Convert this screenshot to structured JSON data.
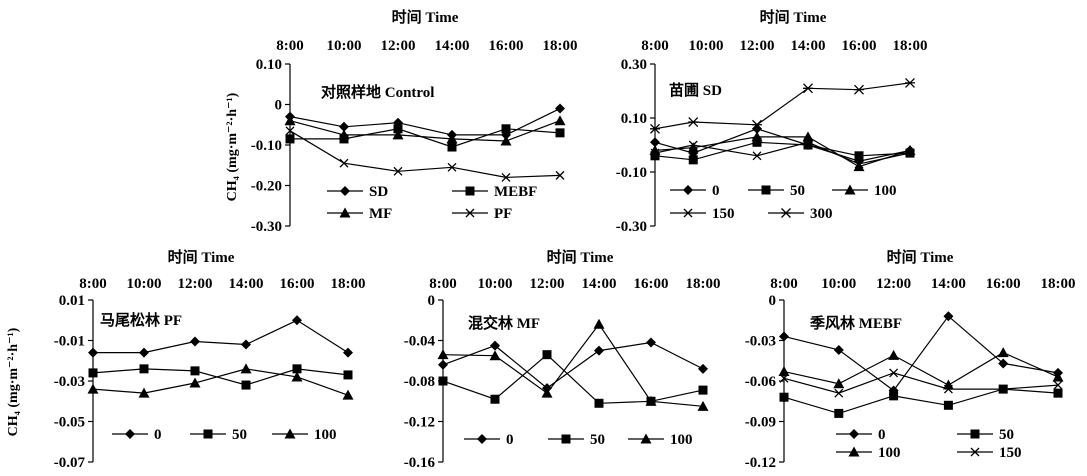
{
  "x_axis_title": "时间  Time",
  "y_axis_title_top": "CH₄ (mg·m⁻²·h⁻¹)",
  "y_axis_title_bottom": "CH₄ (mg·m⁻²·h⁻¹)",
  "chart_data": [
    {
      "type": "line",
      "title": "对照样地 Control",
      "xlabel": "时间  Time",
      "ylabel": "CH₄ (mg·m⁻²·h⁻¹)",
      "categories": [
        "8:00",
        "10:00",
        "12:00",
        "14:00",
        "16:00",
        "18:00"
      ],
      "yticks": [
        "0.10",
        "0",
        "-0.10",
        "-0.20",
        "-0.30"
      ],
      "ylim": [
        -0.3,
        0.1
      ],
      "legend_position": "bottom-inside",
      "series": [
        {
          "name": "SD",
          "marker": "diamond",
          "x": [
            8,
            10,
            12,
            14,
            16,
            18
          ],
          "values": [
            -0.03,
            -0.055,
            -0.045,
            -0.075,
            -0.075,
            -0.01
          ]
        },
        {
          "name": "MEBF",
          "marker": "square",
          "x": [
            8,
            10,
            12,
            14,
            16,
            18
          ],
          "values": [
            -0.085,
            -0.085,
            -0.06,
            -0.105,
            -0.06,
            -0.07
          ]
        },
        {
          "name": "MF",
          "marker": "triangle",
          "x": [
            8,
            10,
            12,
            14,
            16,
            18
          ],
          "values": [
            -0.04,
            -0.075,
            -0.075,
            -0.085,
            -0.09,
            -0.04
          ]
        },
        {
          "name": "PF",
          "marker": "x",
          "x": [
            8,
            10,
            12,
            14,
            16,
            18
          ],
          "values": [
            -0.065,
            -0.145,
            -0.165,
            -0.155,
            -0.18,
            -0.175
          ]
        }
      ]
    },
    {
      "type": "line",
      "title": "苗圃 SD",
      "xlabel": "时间  Time",
      "categories": [
        "8:00",
        "10:00",
        "12:00",
        "14:00",
        "16:00",
        "18:00"
      ],
      "yticks": [
        "0.30",
        "0.10",
        "-0.10",
        "-0.30"
      ],
      "ylim": [
        -0.3,
        0.3
      ],
      "legend_position": "bottom-inside",
      "series": [
        {
          "name": "0",
          "marker": "diamond",
          "x": [
            8,
            9.5,
            12,
            14,
            16,
            18
          ],
          "values": [
            0.01,
            -0.03,
            0.06,
            0.0,
            -0.06,
            -0.02
          ]
        },
        {
          "name": "50",
          "marker": "square",
          "x": [
            8,
            9.5,
            12,
            14,
            16,
            18
          ],
          "values": [
            -0.04,
            -0.055,
            0.01,
            0.0,
            -0.04,
            -0.03
          ]
        },
        {
          "name": "100",
          "marker": "triangle",
          "x": [
            8,
            9.5,
            12,
            14,
            16,
            18
          ],
          "values": [
            -0.02,
            -0.01,
            0.03,
            0.03,
            -0.08,
            -0.02
          ]
        },
        {
          "name": "150",
          "marker": "x",
          "x": [
            8,
            9.5,
            12,
            14,
            16,
            18
          ],
          "values": [
            -0.03,
            0.0,
            -0.04,
            0.01,
            -0.07,
            -0.03
          ]
        },
        {
          "name": "300",
          "marker": "asterisk",
          "x": [
            8,
            9.5,
            12,
            14,
            16,
            18
          ],
          "values": [
            0.06,
            0.085,
            0.075,
            0.21,
            0.205,
            0.23
          ]
        }
      ]
    },
    {
      "type": "line",
      "title": "马尾松林 PF",
      "xlabel": "时间  Time",
      "ylabel": "CH₄ (mg·m⁻²·h⁻¹)",
      "categories": [
        "8:00",
        "10:00",
        "12:00",
        "14:00",
        "16:00",
        "18:00"
      ],
      "yticks": [
        "0.01",
        "-0.01",
        "-0.03",
        "-0.05",
        "-0.07"
      ],
      "ylim": [
        -0.07,
        0.01
      ],
      "legend_position": "bottom-inside",
      "series": [
        {
          "name": "0",
          "marker": "diamond",
          "x": [
            8,
            10,
            12,
            14,
            16,
            18
          ],
          "values": [
            -0.016,
            -0.016,
            -0.0105,
            -0.012,
            0.0,
            -0.016
          ]
        },
        {
          "name": "50",
          "marker": "square",
          "x": [
            8,
            10,
            12,
            14,
            16,
            18
          ],
          "values": [
            -0.026,
            -0.024,
            -0.025,
            -0.032,
            -0.024,
            -0.027
          ]
        },
        {
          "name": "100",
          "marker": "triangle",
          "x": [
            8,
            10,
            12,
            14,
            16,
            18
          ],
          "values": [
            -0.034,
            -0.036,
            -0.031,
            -0.024,
            -0.028,
            -0.037
          ]
        }
      ]
    },
    {
      "type": "line",
      "title": "混交林 MF",
      "xlabel": "时间  Time",
      "categories": [
        "8:00",
        "10:00",
        "12:00",
        "14:00",
        "16:00",
        "18:00"
      ],
      "yticks": [
        "0",
        "-0.04",
        "-0.08",
        "-0.12",
        "-0.16"
      ],
      "ylim": [
        -0.16,
        0
      ],
      "legend_position": "bottom-inside",
      "series": [
        {
          "name": "0",
          "marker": "diamond",
          "x": [
            8,
            10,
            12,
            14,
            16,
            18
          ],
          "values": [
            -0.064,
            -0.045,
            -0.087,
            -0.05,
            -0.042,
            -0.068
          ]
        },
        {
          "name": "50",
          "marker": "square",
          "x": [
            8,
            10,
            12,
            14,
            16,
            18
          ],
          "values": [
            -0.08,
            -0.098,
            -0.054,
            -0.102,
            -0.1,
            -0.089
          ]
        },
        {
          "name": "100",
          "marker": "triangle",
          "x": [
            8,
            10,
            12,
            14,
            16,
            18
          ],
          "values": [
            -0.054,
            -0.055,
            -0.092,
            -0.024,
            -0.1,
            -0.105
          ]
        }
      ]
    },
    {
      "type": "line",
      "title": "季风林 MEBF",
      "xlabel": "时间  Time",
      "categories": [
        "8:00",
        "10:00",
        "12:00",
        "14:00",
        "16:00",
        "18:00"
      ],
      "yticks": [
        "0",
        "-0.03",
        "-0.06",
        "-0.09",
        "-0.12"
      ],
      "ylim": [
        -0.12,
        0
      ],
      "legend_position": "bottom-inside",
      "series": [
        {
          "name": "0",
          "marker": "diamond",
          "x": [
            8,
            10,
            12,
            14,
            16,
            18
          ],
          "values": [
            -0.027,
            -0.037,
            -0.067,
            -0.012,
            -0.047,
            -0.054
          ]
        },
        {
          "name": "50",
          "marker": "square",
          "x": [
            8,
            10,
            12,
            14,
            16,
            18
          ],
          "values": [
            -0.072,
            -0.084,
            -0.071,
            -0.078,
            -0.066,
            -0.069
          ]
        },
        {
          "name": "100",
          "marker": "triangle",
          "x": [
            8,
            10,
            12,
            14,
            16,
            18
          ],
          "values": [
            -0.053,
            -0.062,
            -0.041,
            -0.063,
            -0.039,
            -0.057
          ]
        },
        {
          "name": "150",
          "marker": "x",
          "x": [
            8,
            10,
            12,
            14,
            16,
            18
          ],
          "values": [
            -0.058,
            -0.069,
            -0.054,
            -0.066,
            -0.066,
            -0.063
          ]
        }
      ]
    }
  ]
}
